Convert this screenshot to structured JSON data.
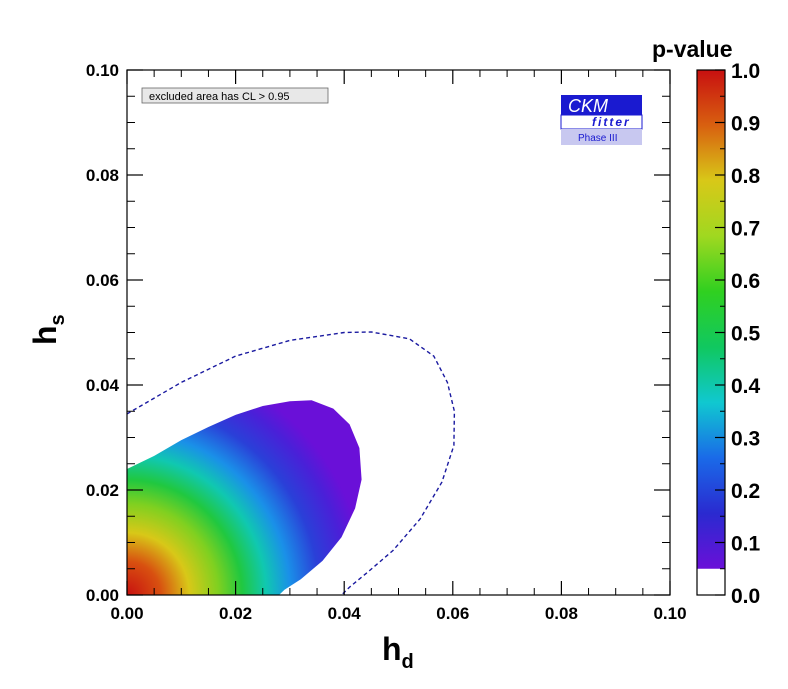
{
  "chart_data": {
    "type": "contour",
    "xlabel": "h",
    "xlabel_sub": "d",
    "ylabel": "h",
    "ylabel_sub": "s",
    "xlim": [
      0.0,
      0.1
    ],
    "ylim": [
      0.0,
      0.1
    ],
    "x_ticks": [
      "0.00",
      "0.02",
      "0.04",
      "0.06",
      "0.08",
      "0.10"
    ],
    "y_ticks": [
      "0.00",
      "0.02",
      "0.04",
      "0.06",
      "0.08",
      "0.10"
    ],
    "annotation": "excluded area has CL > 0.95",
    "logo": {
      "line1": "CKM",
      "line2": "fitter",
      "line3": "Phase III"
    },
    "colorbar": {
      "title": "p-value",
      "range": [
        0.0,
        1.0
      ],
      "ticks": [
        "0.0",
        "0.1",
        "0.2",
        "0.3",
        "0.4",
        "0.5",
        "0.6",
        "0.7",
        "0.8",
        "0.9",
        "1.0"
      ],
      "colors": [
        "#ffffff",
        "#6a10d8",
        "#2a2ad0",
        "#1a6ae8",
        "#10c8d0",
        "#10c860",
        "#30d020",
        "#a0d820",
        "#d8c818",
        "#d86010",
        "#c81010"
      ]
    },
    "filled_region": {
      "description_levels": "p-value contours",
      "outer_boundary_pvalue": 0.05,
      "max_point": {
        "x": 0.0,
        "y": 0.0,
        "pvalue": 1.0
      },
      "outer_boundary_points": [
        [
          0.0,
          0.024
        ],
        [
          0.005,
          0.0265
        ],
        [
          0.01,
          0.0295
        ],
        [
          0.015,
          0.032
        ],
        [
          0.02,
          0.0343
        ],
        [
          0.025,
          0.036
        ],
        [
          0.03,
          0.0369
        ],
        [
          0.034,
          0.0371
        ],
        [
          0.038,
          0.0355
        ],
        [
          0.041,
          0.0325
        ],
        [
          0.0428,
          0.028
        ],
        [
          0.0432,
          0.022
        ],
        [
          0.042,
          0.0165
        ],
        [
          0.0395,
          0.011
        ],
        [
          0.036,
          0.0065
        ],
        [
          0.032,
          0.003
        ],
        [
          0.029,
          0.001
        ],
        [
          0.028,
          0.0
        ]
      ]
    },
    "dashed_contour": {
      "color": "#1a1aa0",
      "points": [
        [
          0.0,
          0.0345
        ],
        [
          0.005,
          0.0375
        ],
        [
          0.01,
          0.0405
        ],
        [
          0.02,
          0.0455
        ],
        [
          0.03,
          0.0485
        ],
        [
          0.04,
          0.05
        ],
        [
          0.045,
          0.0501
        ],
        [
          0.052,
          0.0488
        ],
        [
          0.0565,
          0.0455
        ],
        [
          0.059,
          0.0405
        ],
        [
          0.0603,
          0.035
        ],
        [
          0.0602,
          0.0285
        ],
        [
          0.058,
          0.0215
        ],
        [
          0.054,
          0.0145
        ],
        [
          0.049,
          0.0085
        ],
        [
          0.0445,
          0.0045
        ],
        [
          0.041,
          0.0015
        ],
        [
          0.0395,
          0.0
        ]
      ]
    }
  }
}
